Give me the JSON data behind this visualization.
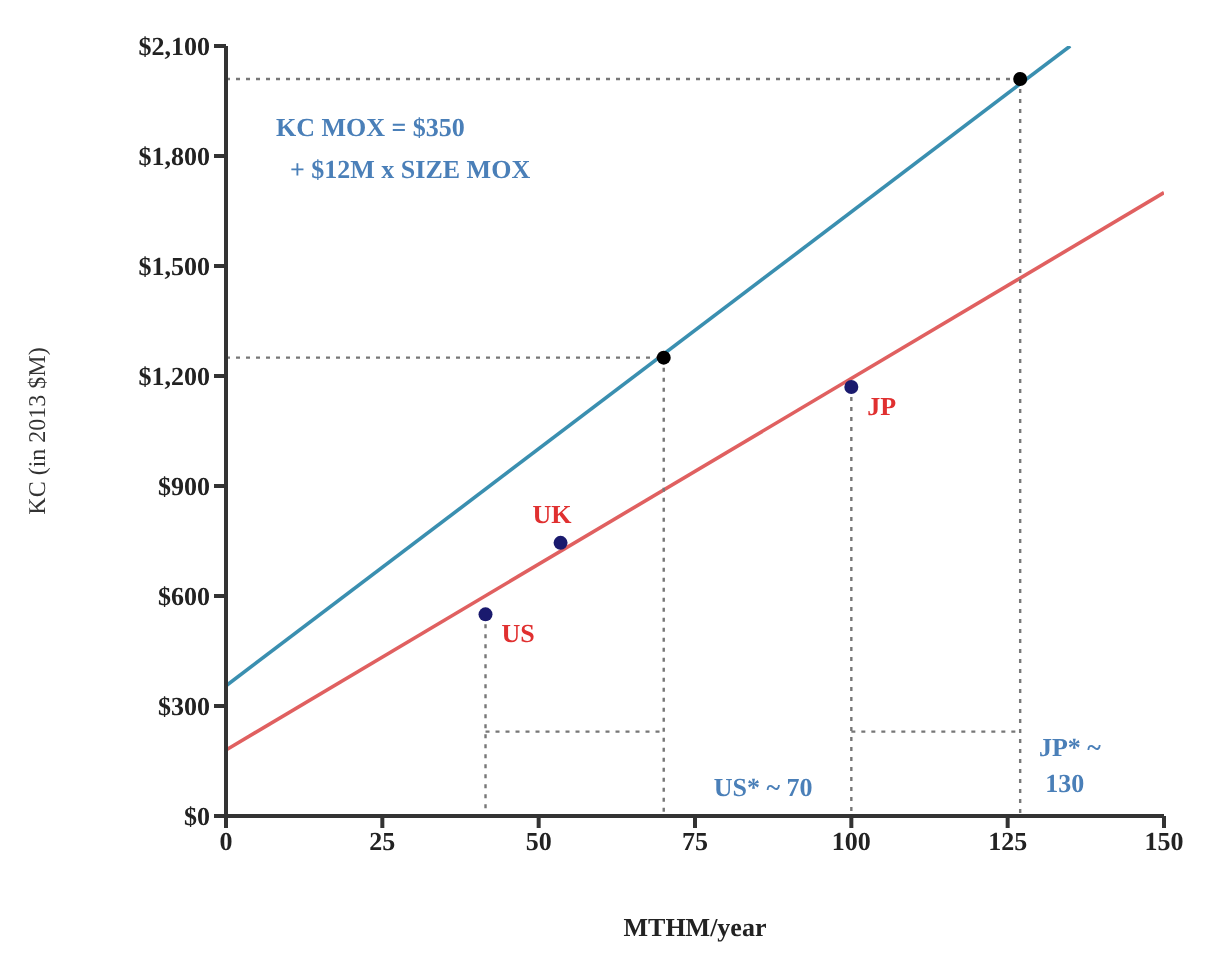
{
  "chart_data": {
    "type": "line",
    "xlabel": "MTHM/year",
    "ylabel": "KC (in 2013 $M)",
    "xlim": [
      0,
      150
    ],
    "xticks": [
      0,
      25,
      50,
      75,
      100,
      125,
      150
    ],
    "ylim": [
      0,
      2100
    ],
    "yticks": [
      {
        "value": 0,
        "label": "$0"
      },
      {
        "value": 300,
        "label": "$300"
      },
      {
        "value": 600,
        "label": "$600"
      },
      {
        "value": 900,
        "label": "$900"
      },
      {
        "value": 1200,
        "label": "$1,200"
      },
      {
        "value": 1500,
        "label": "$1,500"
      },
      {
        "value": 1800,
        "label": "$1,800"
      },
      {
        "value": 2100,
        "label": "$2,100"
      }
    ],
    "grid": false,
    "marker": "none",
    "line_style": "solid",
    "series": [
      {
        "color": "#3a8fb0",
        "x": [
          0,
          135
        ],
        "values": [
          355,
          2100
        ]
      },
      {
        "color": "#e06060",
        "x": [
          0,
          150
        ],
        "values": [
          180,
          1700
        ]
      },
      {
        "type": "scatter",
        "color": "#1a1a6e",
        "marker": "circle",
        "x": [
          41.5,
          53.5,
          100
        ],
        "values": [
          550,
          745,
          1170
        ]
      },
      {
        "type": "scatter",
        "color": "#000000",
        "marker": "circle",
        "x": [
          70,
          127
        ],
        "values": [
          1250,
          2010
        ]
      },
      {
        "type": "line",
        "color": "#777777",
        "line_style": "dotted",
        "x": [
          0,
          127
        ],
        "values": [
          2010,
          2010
        ]
      },
      {
        "type": "line",
        "color": "#777777",
        "line_style": "dotted",
        "x": [
          0,
          70
        ],
        "values": [
          1250,
          1250
        ]
      },
      {
        "type": "line",
        "color": "#777777",
        "line_style": "dotted",
        "x": [
          127,
          127
        ],
        "values": [
          2010,
          0
        ]
      },
      {
        "type": "line",
        "color": "#777777",
        "line_style": "dotted",
        "x": [
          70,
          70
        ],
        "values": [
          1250,
          0
        ]
      },
      {
        "type": "line",
        "color": "#777777",
        "line_style": "dotted",
        "x": [
          41.5,
          41.5
        ],
        "values": [
          550,
          0
        ]
      },
      {
        "type": "line",
        "color": "#777777",
        "line_style": "dotted",
        "x": [
          100,
          100
        ],
        "values": [
          1170,
          0
        ]
      },
      {
        "type": "line",
        "color": "#777777",
        "line_style": "dotted",
        "x": [
          41.5,
          70
        ],
        "values": [
          230,
          230
        ]
      },
      {
        "type": "line",
        "color": "#777777",
        "line_style": "dotted",
        "x": [
          100,
          127
        ],
        "values": [
          230,
          230
        ]
      }
    ],
    "annotations": [
      "KC MOX = $350",
      "+ $12M x SIZE MOX",
      "US* ~ 70",
      "JP* ~",
      "130",
      {
        "text": "US",
        "x": 41.5,
        "y": 550
      },
      {
        "text": "UK",
        "x": 53.5,
        "y": 745
      },
      {
        "text": "JP",
        "x": 100,
        "y": 1170
      }
    ]
  }
}
